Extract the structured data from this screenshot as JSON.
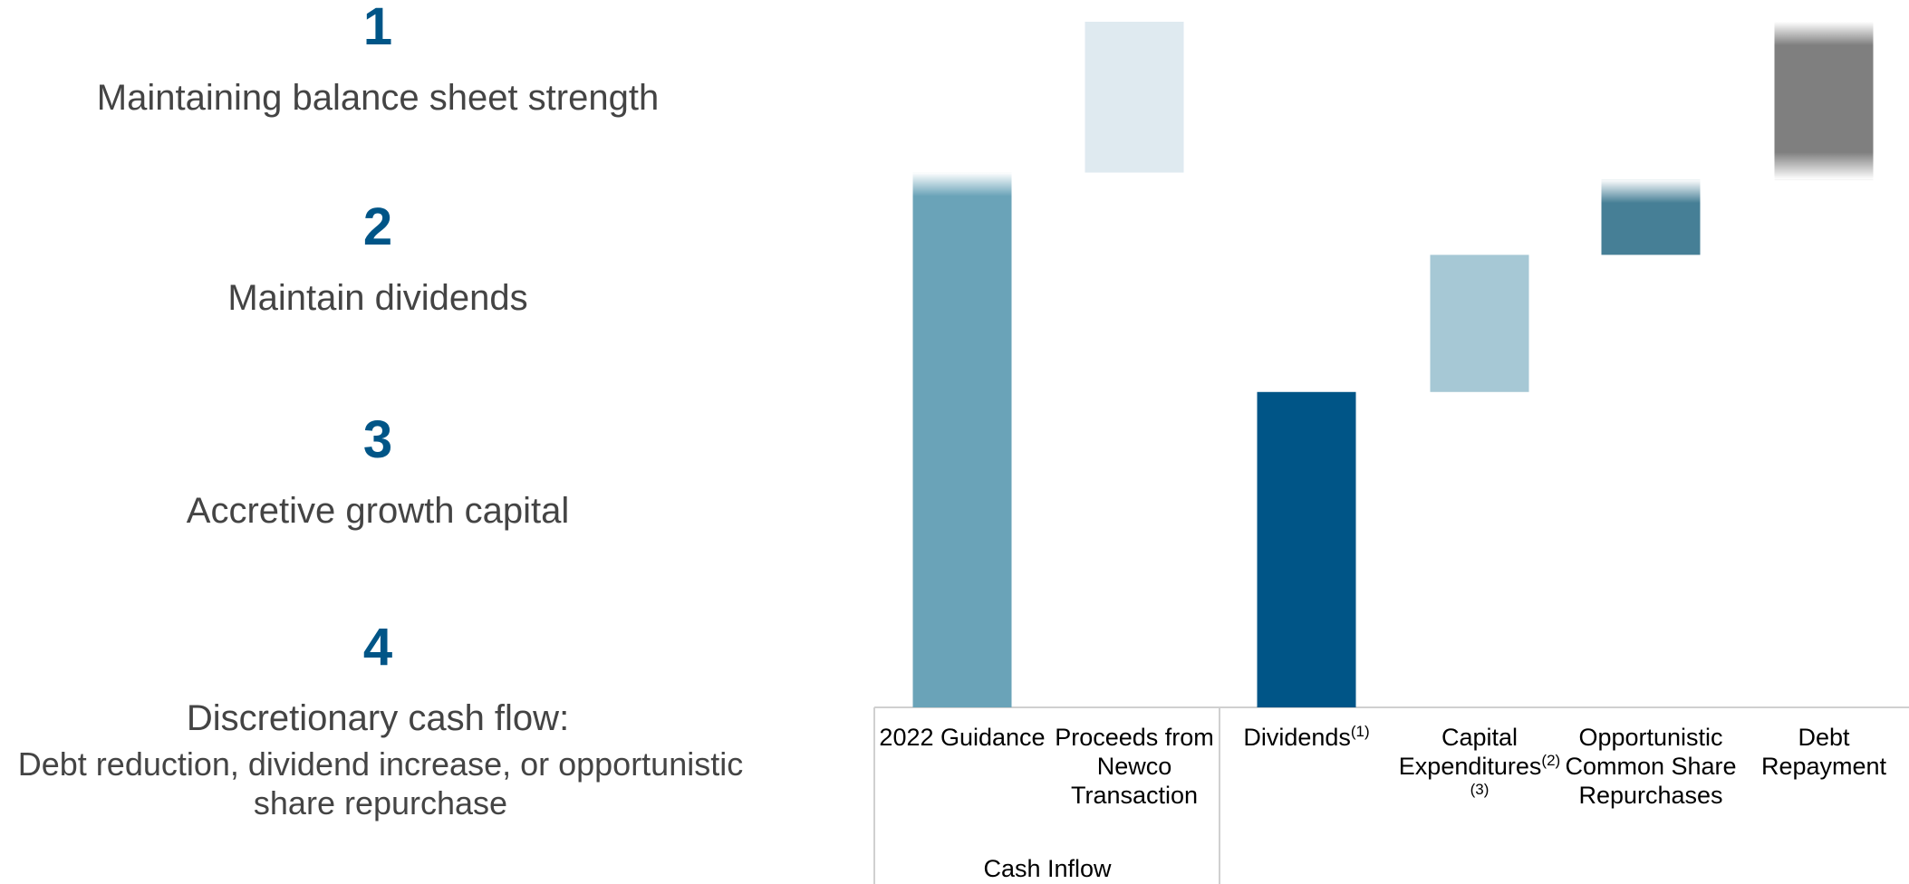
{
  "left_items": [
    {
      "number": "1",
      "text": "Maintaining balance sheet strength"
    },
    {
      "number": "2",
      "text": "Maintain dividends"
    },
    {
      "number": "3",
      "text": "Accretive growth capital"
    },
    {
      "number": "4",
      "text": "Discretionary cash flow:",
      "detail": "Debt reduction, dividend increase, or opportunistic share repurchase"
    }
  ],
  "chart_data": {
    "type": "waterfall",
    "categories": [
      "2022 Guidance",
      "Proceeds from Newco Transaction",
      "Dividends",
      "Capital Expenditures",
      "Opportunistic Common Share Repurchases",
      "Debt Repayment"
    ],
    "footnotes": [
      null,
      null,
      "(1)",
      "(2)(3)",
      null,
      null
    ],
    "values": [
      78,
      22,
      -46,
      -20,
      -11,
      -23
    ],
    "colors": [
      "#6aa3b8",
      "#dfeaf0",
      "#005587",
      "#a6c8d5",
      "#467f96",
      "#7f7f7f"
    ],
    "ylim": [
      0,
      100
    ],
    "group_label": "Cash Inflow"
  }
}
